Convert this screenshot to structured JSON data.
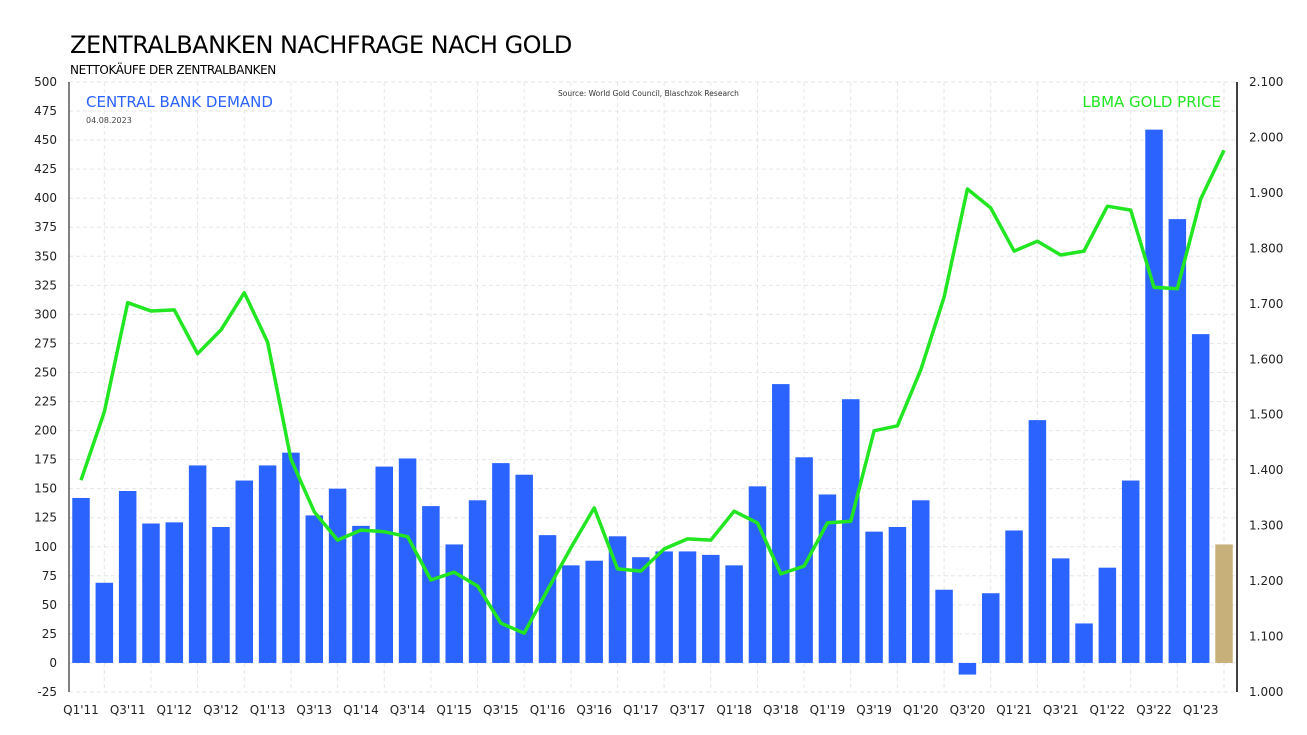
{
  "title": "ZENTRALBANKEN NACHFRAGE NACH GOLD",
  "subtitle": "NETTOKÄUFE DER ZENTRALBANKEN",
  "chart_data": {
    "type": "bar+line",
    "title": "ZENTRALBANKEN NACHFRAGE NACH GOLD",
    "source": "Source:  World  Gold Council,  Blaschzok  Research",
    "date": "04.08.2023",
    "left_axis": {
      "label": "CENTRAL BANK DEMAND",
      "range": [
        -25,
        500
      ],
      "ticks": [
        -25,
        0,
        25,
        50,
        75,
        100,
        125,
        150,
        175,
        200,
        225,
        250,
        275,
        300,
        325,
        350,
        375,
        400,
        425,
        450,
        475,
        500
      ]
    },
    "right_axis": {
      "label": "LBMA GOLD PRICE",
      "range": [
        1000,
        2100
      ],
      "ticks": [
        "1.000",
        "1.100",
        "1.200",
        "1.300",
        "1.400",
        "1.500",
        "1.600",
        "1.700",
        "1.800",
        "1.900",
        "2.000",
        "2.100"
      ]
    },
    "grid": true,
    "categories": [
      "Q1'11",
      "Q2'11",
      "Q3'11",
      "Q4'11",
      "Q1'12",
      "Q2'12",
      "Q3'12",
      "Q4'12",
      "Q1'13",
      "Q2'13",
      "Q3'13",
      "Q4'13",
      "Q1'14",
      "Q2'14",
      "Q3'14",
      "Q4'14",
      "Q1'15",
      "Q2'15",
      "Q3'15",
      "Q4'15",
      "Q1'16",
      "Q2'16",
      "Q3'16",
      "Q4'16",
      "Q1'17",
      "Q2'17",
      "Q3'17",
      "Q4'17",
      "Q1'18",
      "Q2'18",
      "Q3'18",
      "Q4'18",
      "Q1'19",
      "Q2'19",
      "Q3'19",
      "Q4'19",
      "Q1'20",
      "Q2'20",
      "Q3'20",
      "Q4'20",
      "Q1'21",
      "Q2'21",
      "Q3'21",
      "Q4'21",
      "Q1'22",
      "Q2'22",
      "Q3'22",
      "Q4'22",
      "Q1'23",
      "Q2'23"
    ],
    "series": [
      {
        "name": "CENTRAL BANK DEMAND",
        "type": "bar",
        "axis": "left",
        "color": "#2b63ff",
        "highlight_last_color": "#c8b07a",
        "values": [
          142,
          69,
          148,
          120,
          121,
          170,
          117,
          157,
          170,
          181,
          127,
          150,
          118,
          169,
          176,
          135,
          102,
          140,
          172,
          162,
          110,
          84,
          88,
          109,
          91,
          96,
          96,
          93,
          84,
          152,
          240,
          177,
          145,
          227,
          113,
          117,
          140,
          63,
          -10,
          60,
          114,
          209,
          90,
          34,
          82,
          157,
          459,
          382,
          283,
          102
        ]
      },
      {
        "name": "LBMA GOLD PRICE",
        "type": "line",
        "axis": "right",
        "color": "#22e622",
        "values": [
          1382,
          1505,
          1702,
          1687,
          1689,
          1610,
          1653,
          1720,
          1631,
          1420,
          1325,
          1274,
          1292,
          1289,
          1280,
          1202,
          1216,
          1191,
          1124,
          1106,
          1184,
          1260,
          1332,
          1222,
          1218,
          1258,
          1276,
          1274,
          1326,
          1305,
          1213,
          1227,
          1305,
          1308,
          1471,
          1480,
          1581,
          1712,
          1907,
          1873,
          1795,
          1813,
          1788,
          1795,
          1876,
          1869,
          1730,
          1727,
          1889,
          1977
        ]
      }
    ]
  }
}
